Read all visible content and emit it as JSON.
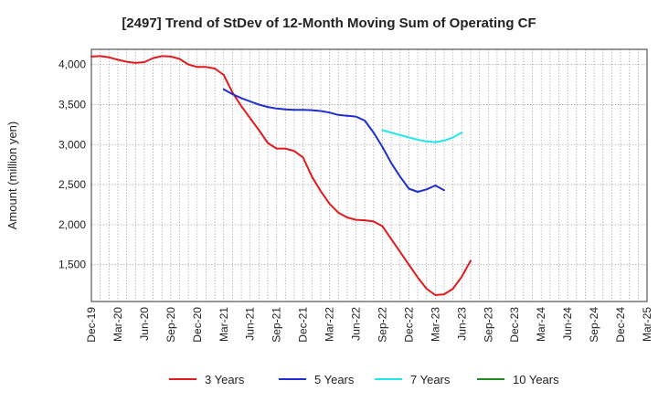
{
  "chart_data": {
    "type": "line",
    "title": "[2497]  Trend of StDev of 12-Month Moving Sum of Operating CF",
    "ylabel": "Amount (million yen)",
    "xlabel": "",
    "x_ticks": [
      "Dec-19",
      "Mar-20",
      "Jun-20",
      "Sep-20",
      "Dec-20",
      "Mar-21",
      "Jun-21",
      "Sep-21",
      "Dec-21",
      "Mar-22",
      "Jun-22",
      "Sep-22",
      "Dec-22",
      "Mar-23",
      "Jun-23",
      "Sep-23",
      "Dec-23",
      "Mar-24",
      "Jun-24",
      "Sep-24",
      "Dec-24",
      "Mar-25"
    ],
    "y_ticks": [
      1500,
      2000,
      2500,
      3000,
      3500,
      4000
    ],
    "y_tick_labels": [
      "1,500",
      "2,000",
      "2,500",
      "3,000",
      "3,500",
      "4,000"
    ],
    "ylim": [
      1040,
      4190
    ],
    "grid": true,
    "legend_position": "bottom",
    "series": [
      {
        "name": "3 Years",
        "color": "#e31a1c",
        "start_index": 0,
        "values": [
          4100,
          4105,
          4090,
          4060,
          4035,
          4020,
          4030,
          4080,
          4105,
          4100,
          4070,
          4000,
          3970,
          3970,
          3950,
          3870,
          3650,
          3480,
          3330,
          3180,
          3020,
          2950,
          2950,
          2920,
          2840,
          2600,
          2420,
          2260,
          2150,
          2090,
          2060,
          2055,
          2040,
          1980,
          1820,
          1660,
          1500,
          1340,
          1200,
          1120,
          1130,
          1200,
          1350,
          1550
        ]
      },
      {
        "name": "5 Years",
        "color": "#1f2fd0",
        "start_index": 15,
        "values": [
          3690,
          3630,
          3580,
          3540,
          3500,
          3470,
          3450,
          3440,
          3435,
          3435,
          3430,
          3420,
          3400,
          3370,
          3360,
          3350,
          3300,
          3150,
          2970,
          2770,
          2600,
          2450,
          2410,
          2440,
          2490,
          2430
        ]
      },
      {
        "name": "7 Years",
        "color": "#22e5ee",
        "start_index": 33,
        "values": [
          3180,
          3150,
          3120,
          3090,
          3060,
          3040,
          3030,
          3050,
          3090,
          3150
        ]
      },
      {
        "name": "10 Years",
        "color": "#1e8c1e",
        "start_index": 0,
        "values": []
      }
    ]
  }
}
